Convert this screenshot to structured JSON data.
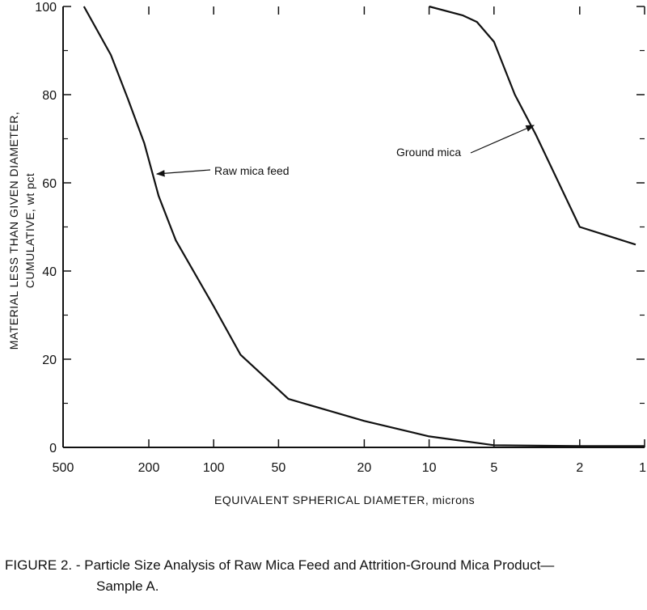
{
  "chart_data": {
    "type": "line",
    "title": "",
    "xlabel": "EQUIVALENT SPHERICAL DIAMETER, microns",
    "ylabel_line1": "MATERIAL LESS THAN GIVEN DIAMETER,",
    "ylabel_line2": "CUMULATIVE, wt pct",
    "x_scale": "log",
    "x_reversed": true,
    "xlim": [
      500,
      1
    ],
    "ylim": [
      0,
      100
    ],
    "x_ticks": [
      500,
      200,
      100,
      50,
      20,
      10,
      5,
      2,
      1
    ],
    "x_tick_labels": [
      "500",
      "200",
      "100",
      "50",
      "20",
      "10",
      "5",
      "2",
      "1"
    ],
    "y_ticks": [
      0,
      20,
      40,
      60,
      80,
      100
    ],
    "y_tick_labels": [
      "0",
      "20",
      "40",
      "60",
      "80",
      "100"
    ],
    "y_minor_ticks": [
      10,
      30,
      50,
      70,
      90
    ],
    "series": [
      {
        "name": "Raw mica feed",
        "points": [
          [
            400,
            100
          ],
          [
            300,
            89
          ],
          [
            250,
            79
          ],
          [
            210,
            69
          ],
          [
            180,
            57
          ],
          [
            150,
            47
          ],
          [
            100,
            32
          ],
          [
            75,
            21
          ],
          [
            45,
            11
          ],
          [
            20,
            6
          ],
          [
            10,
            2.5
          ],
          [
            5,
            0.5
          ],
          [
            2,
            0.3
          ],
          [
            1,
            0.3
          ]
        ]
      },
      {
        "name": "Ground mica",
        "points": [
          [
            10,
            100
          ],
          [
            7,
            98
          ],
          [
            6,
            96.5
          ],
          [
            5,
            92
          ],
          [
            4,
            80
          ],
          [
            3.2,
            71
          ],
          [
            2,
            50
          ],
          [
            1.1,
            46
          ]
        ]
      }
    ],
    "annotations": [
      {
        "text": "Raw mica feed",
        "series": "Raw mica feed",
        "arrow_to": [
          195,
          62
        ]
      },
      {
        "text": "Ground mica",
        "series": "Ground mica",
        "arrow_to": [
          3.3,
          73
        ]
      }
    ]
  },
  "caption": {
    "line1": "FIGURE 2. - Particle Size Analysis of Raw Mica Feed and Attrition-Ground Mica Product—",
    "line2": "Sample A."
  }
}
